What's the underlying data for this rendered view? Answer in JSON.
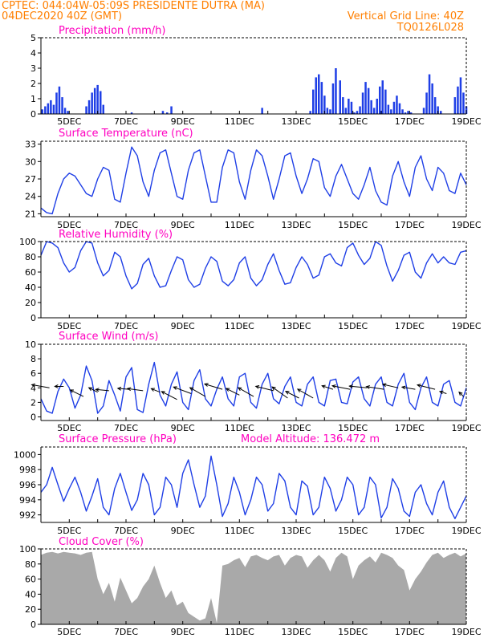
{
  "header": {
    "line1_left": "CPTEC:   044:04W-05:09S   PRESIDENTE DUTRA (MA)",
    "line2_left": "04DEC2020 40Z (GMT)",
    "line2_right": "Vertical Grid Line: 40Z",
    "line3_right": "TQ0126L028"
  },
  "colors": {
    "header": "#ff7f00",
    "panel_title": "#ff00c0",
    "series": "#1f3fe6",
    "cloud": "#a9a9a9",
    "wind_arrow": "#000000"
  },
  "x_axis": {
    "labels": [
      "5DEC",
      "7DEC",
      "9DEC",
      "11DEC",
      "13DEC",
      "15DEC",
      "17DEC",
      "19DEC"
    ],
    "day_start": 4,
    "day_end": 19
  },
  "chart_data": [
    {
      "type": "bar",
      "title": "Precipitation (mm/h)",
      "ylim": [
        0,
        5
      ],
      "yticks": [
        0,
        1,
        2,
        3,
        4,
        5
      ],
      "x": [
        4.05,
        4.15,
        4.25,
        4.35,
        4.45,
        4.55,
        4.65,
        4.75,
        4.85,
        4.95,
        5.6,
        5.7,
        5.8,
        5.9,
        6.0,
        6.1,
        6.2,
        7.2,
        8.3,
        8.45,
        8.6,
        11.8,
        13.5,
        13.6,
        13.7,
        13.8,
        13.9,
        14.0,
        14.1,
        14.2,
        14.3,
        14.4,
        14.55,
        14.65,
        14.75,
        14.85,
        14.95,
        15.05,
        15.15,
        15.25,
        15.35,
        15.45,
        15.55,
        15.65,
        15.75,
        15.85,
        15.95,
        16.05,
        16.15,
        16.25,
        16.35,
        16.45,
        16.55,
        16.65,
        16.75,
        16.85,
        16.95,
        17.05,
        17.5,
        17.6,
        17.7,
        17.8,
        17.9,
        18.0,
        18.1,
        18.6,
        18.7,
        18.8,
        18.9,
        19.0
      ],
      "values": [
        0.3,
        0.5,
        0.7,
        0.9,
        0.6,
        1.4,
        1.8,
        1.1,
        0.4,
        0.2,
        0.5,
        0.9,
        1.4,
        1.7,
        1.9,
        1.5,
        0.6,
        0.1,
        0.2,
        0.1,
        0.5,
        0.4,
        0.2,
        1.6,
        2.4,
        2.6,
        2.1,
        1.2,
        0.4,
        0.3,
        2.0,
        3.0,
        2.2,
        1.1,
        0.4,
        1.0,
        0.8,
        0.1,
        0.2,
        0.5,
        1.4,
        2.1,
        1.7,
        0.9,
        0.4,
        1.0,
        1.8,
        2.2,
        1.6,
        0.6,
        0.3,
        0.8,
        1.2,
        0.7,
        0.3,
        0.1,
        0.2,
        0.1,
        0.4,
        1.4,
        2.6,
        2.0,
        1.1,
        0.5,
        0.2,
        1.1,
        1.8,
        2.4,
        1.4,
        0.5
      ]
    },
    {
      "type": "line",
      "title": "Surface Temperature (nC)",
      "ylim": [
        20.5,
        33.5
      ],
      "yticks": [
        21,
        24,
        27,
        30,
        33
      ],
      "x": [
        4.0,
        4.2,
        4.4,
        4.6,
        4.8,
        5.0,
        5.2,
        5.4,
        5.6,
        5.8,
        6.0,
        6.2,
        6.4,
        6.6,
        6.8,
        7.0,
        7.2,
        7.4,
        7.6,
        7.8,
        8.0,
        8.2,
        8.4,
        8.6,
        8.8,
        9.0,
        9.2,
        9.4,
        9.6,
        9.8,
        10.0,
        10.2,
        10.4,
        10.6,
        10.8,
        11.0,
        11.2,
        11.4,
        11.6,
        11.8,
        12.0,
        12.2,
        12.4,
        12.6,
        12.8,
        13.0,
        13.2,
        13.4,
        13.6,
        13.8,
        14.0,
        14.2,
        14.4,
        14.6,
        14.8,
        15.0,
        15.2,
        15.4,
        15.6,
        15.8,
        16.0,
        16.2,
        16.4,
        16.6,
        16.8,
        17.0,
        17.2,
        17.4,
        17.6,
        17.8,
        18.0,
        18.2,
        18.4,
        18.6,
        18.8,
        19.0
      ],
      "values": [
        22.0,
        21.2,
        21.0,
        24.5,
        27.0,
        28.0,
        27.5,
        26.0,
        24.5,
        24.0,
        27.0,
        29.0,
        28.5,
        23.5,
        23.0,
        28.0,
        32.5,
        31.0,
        26.5,
        24.0,
        28.5,
        31.5,
        32.0,
        28.0,
        24.0,
        23.5,
        28.5,
        31.5,
        32.0,
        27.5,
        23.0,
        23.0,
        29.0,
        32.0,
        31.5,
        26.5,
        23.5,
        28.5,
        32.0,
        31.0,
        27.5,
        23.5,
        27.0,
        31.0,
        31.5,
        27.5,
        24.5,
        27.0,
        30.5,
        30.0,
        25.5,
        24.0,
        27.5,
        29.5,
        27.0,
        24.5,
        23.5,
        26.0,
        29.0,
        25.0,
        23.0,
        22.5,
        27.5,
        30.0,
        26.5,
        24.0,
        29.0,
        31.0,
        27.0,
        25.0,
        29.0,
        28.0,
        25.0,
        24.5,
        28.0,
        26.0
      ]
    },
    {
      "type": "line",
      "title": "Relative Humidity (%)",
      "ylim": [
        0,
        100
      ],
      "yticks": [
        0,
        20,
        40,
        60,
        80,
        100
      ],
      "x": [
        4.0,
        4.2,
        4.4,
        4.6,
        4.8,
        5.0,
        5.2,
        5.4,
        5.6,
        5.8,
        6.0,
        6.2,
        6.4,
        6.6,
        6.8,
        7.0,
        7.2,
        7.4,
        7.6,
        7.8,
        8.0,
        8.2,
        8.4,
        8.6,
        8.8,
        9.0,
        9.2,
        9.4,
        9.6,
        9.8,
        10.0,
        10.2,
        10.4,
        10.6,
        10.8,
        11.0,
        11.2,
        11.4,
        11.6,
        11.8,
        12.0,
        12.2,
        12.4,
        12.6,
        12.8,
        13.0,
        13.2,
        13.4,
        13.6,
        13.8,
        14.0,
        14.2,
        14.4,
        14.6,
        14.8,
        15.0,
        15.2,
        15.4,
        15.6,
        15.8,
        16.0,
        16.2,
        16.4,
        16.6,
        16.8,
        17.0,
        17.2,
        17.4,
        17.6,
        17.8,
        18.0,
        18.2,
        18.4,
        18.6,
        18.8,
        19.0
      ],
      "values": [
        82,
        100,
        98,
        92,
        72,
        60,
        66,
        88,
        100,
        98,
        72,
        55,
        62,
        86,
        80,
        55,
        38,
        45,
        70,
        78,
        55,
        40,
        42,
        62,
        80,
        76,
        50,
        40,
        44,
        65,
        80,
        74,
        48,
        42,
        50,
        72,
        80,
        52,
        42,
        50,
        70,
        84,
        62,
        44,
        46,
        66,
        80,
        70,
        52,
        56,
        80,
        84,
        72,
        68,
        92,
        98,
        82,
        70,
        78,
        100,
        95,
        68,
        48,
        62,
        82,
        86,
        60,
        52,
        72,
        84,
        72,
        80,
        72,
        70,
        86,
        88
      ]
    },
    {
      "type": "line",
      "title": "Surface Wind (m/s)",
      "ylim": [
        -0.5,
        10
      ],
      "yticks": [
        0,
        2,
        4,
        6,
        8,
        10
      ],
      "x": [
        4.0,
        4.2,
        4.4,
        4.6,
        4.8,
        5.0,
        5.2,
        5.4,
        5.6,
        5.8,
        6.0,
        6.2,
        6.4,
        6.6,
        6.8,
        7.0,
        7.2,
        7.4,
        7.6,
        7.8,
        8.0,
        8.2,
        8.4,
        8.6,
        8.8,
        9.0,
        9.2,
        9.4,
        9.6,
        9.8,
        10.0,
        10.2,
        10.4,
        10.6,
        10.8,
        11.0,
        11.2,
        11.4,
        11.6,
        11.8,
        12.0,
        12.2,
        12.4,
        12.6,
        12.8,
        13.0,
        13.2,
        13.4,
        13.6,
        13.8,
        14.0,
        14.2,
        14.4,
        14.6,
        14.8,
        15.0,
        15.2,
        15.4,
        15.6,
        15.8,
        16.0,
        16.2,
        16.4,
        16.6,
        16.8,
        17.0,
        17.2,
        17.4,
        17.6,
        17.8,
        18.0,
        18.2,
        18.4,
        18.6,
        18.8,
        19.0
      ],
      "values": [
        2.5,
        0.8,
        0.5,
        3.5,
        5.2,
        4.0,
        1.2,
        3.0,
        7.0,
        5.0,
        0.5,
        1.5,
        5.0,
        3.0,
        0.8,
        5.5,
        6.8,
        1.0,
        0.6,
        4.5,
        7.5,
        3.0,
        1.5,
        4.5,
        6.2,
        2.0,
        1.0,
        5.0,
        6.5,
        2.5,
        1.5,
        3.8,
        5.5,
        2.5,
        1.5,
        5.5,
        6.0,
        2.0,
        1.2,
        4.5,
        6.0,
        2.5,
        1.8,
        4.2,
        5.5,
        2.0,
        1.5,
        4.5,
        5.5,
        2.0,
        1.5,
        5.0,
        5.2,
        2.0,
        1.8,
        4.8,
        5.5,
        2.5,
        1.5,
        4.5,
        5.5,
        2.0,
        1.5,
        4.5,
        6.0,
        2.0,
        1.0,
        4.0,
        5.5,
        2.0,
        1.5,
        4.5,
        5.0,
        2.0,
        1.5,
        4.0
      ],
      "arrows": [
        {
          "day": 4.3,
          "level": 4.0,
          "u": -4.0,
          "v": 0.7
        },
        {
          "day": 4.8,
          "level": 4.2,
          "u": -2.0,
          "v": 0.0
        },
        {
          "day": 5.5,
          "level": 2.8,
          "u": -3.0,
          "v": 1.5
        },
        {
          "day": 6.0,
          "level": 3.4,
          "u": -2.0,
          "v": 1.0
        },
        {
          "day": 6.4,
          "level": 3.6,
          "u": -3.0,
          "v": 0.3
        },
        {
          "day": 7.1,
          "level": 3.8,
          "u": -2.5,
          "v": 0.2
        },
        {
          "day": 7.6,
          "level": 3.6,
          "u": -3.5,
          "v": 0.5
        },
        {
          "day": 8.2,
          "level": 3.4,
          "u": -2.0,
          "v": 0.8
        },
        {
          "day": 8.8,
          "level": 2.4,
          "u": -3.5,
          "v": 1.8
        },
        {
          "day": 9.3,
          "level": 3.2,
          "u": -4.0,
          "v": 1.5
        },
        {
          "day": 9.8,
          "level": 2.8,
          "u": -3.5,
          "v": 2.0
        },
        {
          "day": 10.4,
          "level": 3.8,
          "u": -4.0,
          "v": 1.2
        },
        {
          "day": 11.0,
          "level": 3.0,
          "u": -3.0,
          "v": 1.5
        },
        {
          "day": 11.5,
          "level": 2.8,
          "u": -3.5,
          "v": 2.0
        },
        {
          "day": 12.2,
          "level": 3.6,
          "u": -4.0,
          "v": 1.0
        },
        {
          "day": 12.7,
          "level": 2.6,
          "u": -3.5,
          "v": 2.5
        },
        {
          "day": 13.1,
          "level": 2.6,
          "u": -3.0,
          "v": 1.5
        },
        {
          "day": 13.6,
          "level": 2.6,
          "u": -3.5,
          "v": 2.0
        },
        {
          "day": 14.3,
          "level": 3.8,
          "u": -2.5,
          "v": 0.8
        },
        {
          "day": 14.9,
          "level": 3.8,
          "u": -4.0,
          "v": 0.8
        },
        {
          "day": 15.5,
          "level": 4.0,
          "u": -4.0,
          "v": 0.4
        },
        {
          "day": 16.1,
          "level": 3.8,
          "u": -4.0,
          "v": 0.6
        },
        {
          "day": 16.6,
          "level": 4.0,
          "u": -3.5,
          "v": 0.8
        },
        {
          "day": 17.2,
          "level": 3.8,
          "u": -3.0,
          "v": 0.5
        },
        {
          "day": 17.9,
          "level": 3.8,
          "u": -4.0,
          "v": 1.0
        },
        {
          "day": 18.3,
          "level": 3.2,
          "u": -1.5,
          "v": 0.5
        },
        {
          "day": 18.9,
          "level": 2.8,
          "u": -1.0,
          "v": 1.0
        }
      ]
    },
    {
      "type": "line",
      "title": "Surface Pressure (hPa)",
      "subtitle": "Model Altitude: 136.472 m",
      "ylim": [
        991,
        1001
      ],
      "yticks": [
        992,
        994,
        996,
        998,
        1000
      ],
      "x": [
        4.0,
        4.2,
        4.4,
        4.6,
        4.8,
        5.0,
        5.2,
        5.4,
        5.6,
        5.8,
        6.0,
        6.2,
        6.4,
        6.6,
        6.8,
        7.0,
        7.2,
        7.4,
        7.6,
        7.8,
        8.0,
        8.2,
        8.4,
        8.6,
        8.8,
        9.0,
        9.2,
        9.4,
        9.6,
        9.8,
        10.0,
        10.2,
        10.4,
        10.6,
        10.8,
        11.0,
        11.2,
        11.4,
        11.6,
        11.8,
        12.0,
        12.2,
        12.4,
        12.6,
        12.8,
        13.0,
        13.2,
        13.4,
        13.6,
        13.8,
        14.0,
        14.2,
        14.4,
        14.6,
        14.8,
        15.0,
        15.2,
        15.4,
        15.6,
        15.8,
        16.0,
        16.2,
        16.4,
        16.6,
        16.8,
        17.0,
        17.2,
        17.4,
        17.6,
        17.8,
        18.0,
        18.2,
        18.4,
        18.6,
        18.8,
        19.0
      ],
      "values": [
        995.0,
        996.0,
        998.3,
        996.0,
        993.8,
        995.5,
        997.0,
        995.0,
        992.5,
        994.5,
        996.8,
        993.0,
        992.0,
        995.5,
        997.5,
        995.0,
        992.6,
        994.0,
        997.5,
        996.0,
        992.0,
        993.0,
        997.0,
        996.0,
        993.0,
        997.5,
        999.3,
        996.0,
        993.0,
        994.5,
        999.8,
        996.0,
        991.8,
        993.5,
        997.0,
        995.0,
        992.0,
        994.0,
        997.0,
        996.0,
        992.5,
        993.5,
        997.5,
        996.5,
        993.0,
        992.0,
        996.5,
        995.8,
        992.0,
        993.0,
        997.0,
        995.5,
        992.5,
        994.0,
        997.0,
        996.0,
        992.0,
        993.0,
        997.0,
        996.0,
        991.6,
        993.0,
        996.8,
        995.5,
        992.5,
        991.8,
        995.0,
        996.0,
        993.5,
        992.0,
        995.0,
        996.5,
        993.0,
        991.5,
        993.0,
        994.5
      ]
    },
    {
      "type": "area",
      "title": "Cloud Cover (%)",
      "ylim": [
        0,
        100
      ],
      "yticks": [
        0,
        20,
        40,
        60,
        80,
        100
      ],
      "x": [
        4.0,
        4.2,
        4.4,
        4.6,
        4.8,
        5.0,
        5.2,
        5.4,
        5.6,
        5.8,
        6.0,
        6.2,
        6.4,
        6.6,
        6.8,
        7.0,
        7.2,
        7.4,
        7.6,
        7.8,
        8.0,
        8.2,
        8.4,
        8.6,
        8.8,
        9.0,
        9.2,
        9.4,
        9.6,
        9.8,
        10.0,
        10.2,
        10.4,
        10.6,
        10.8,
        11.0,
        11.2,
        11.4,
        11.6,
        11.8,
        12.0,
        12.2,
        12.4,
        12.6,
        12.8,
        13.0,
        13.2,
        13.4,
        13.6,
        13.8,
        14.0,
        14.2,
        14.4,
        14.6,
        14.8,
        15.0,
        15.2,
        15.4,
        15.6,
        15.8,
        16.0,
        16.2,
        16.4,
        16.6,
        16.8,
        17.0,
        17.2,
        17.4,
        17.6,
        17.8,
        18.0,
        18.2,
        18.4,
        18.6,
        18.8,
        19.0
      ],
      "values": [
        92,
        95,
        96,
        94,
        96,
        95,
        94,
        92,
        95,
        96,
        60,
        40,
        55,
        30,
        62,
        45,
        28,
        35,
        50,
        60,
        78,
        55,
        35,
        45,
        25,
        30,
        15,
        10,
        5,
        8,
        35,
        2,
        78,
        80,
        85,
        88,
        76,
        90,
        92,
        88,
        85,
        90,
        92,
        78,
        88,
        92,
        90,
        75,
        85,
        92,
        85,
        70,
        88,
        95,
        90,
        60,
        78,
        85,
        90,
        82,
        95,
        92,
        88,
        78,
        72,
        45,
        60,
        70,
        82,
        92,
        95,
        88,
        92,
        95,
        90,
        94
      ]
    }
  ]
}
